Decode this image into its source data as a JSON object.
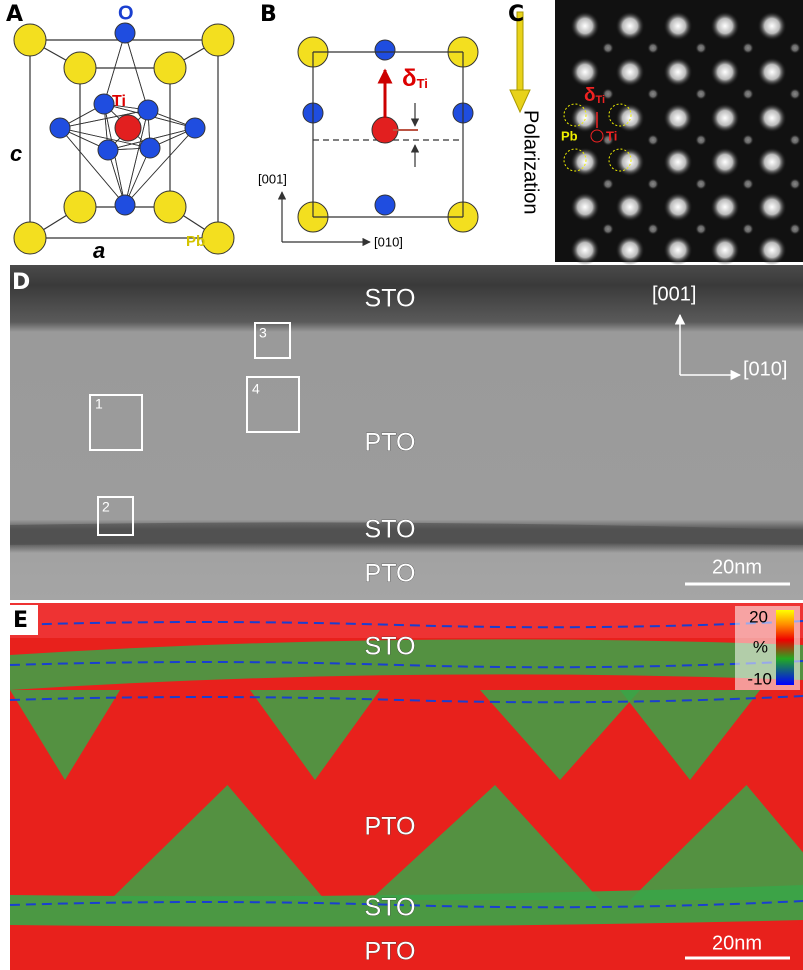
{
  "panel_a": {
    "label": "A",
    "oxygen": "O",
    "titanium": "Ti",
    "lead": "Pb",
    "axis_c": "c",
    "axis_a": "a"
  },
  "panel_b": {
    "label": "B",
    "delta": {
      "symbol": "δ",
      "subscript": "Ti"
    },
    "axis_vertical": "[001]",
    "axis_horizontal": "[010]"
  },
  "panel_c": {
    "label": "C",
    "arrow": "Polarization",
    "delta": {
      "symbol": "δ",
      "subscript": "Ti"
    },
    "lead": "Pb",
    "titanium": "Ti"
  },
  "panel_d": {
    "label": "D",
    "layers": [
      "STO",
      "PTO",
      "STO",
      "PTO"
    ],
    "axis_vertical": "[001]",
    "axis_horizontal": "[010]",
    "boxes": [
      "1",
      "2",
      "3",
      "4"
    ],
    "scale_bar": "20nm"
  },
  "panel_e": {
    "label": "E",
    "layers": [
      "STO",
      "PTO",
      "STO",
      "PTO"
    ],
    "scale_bar": "20nm",
    "colorbar": {
      "max": 20,
      "unit": "%",
      "min": -10
    }
  }
}
